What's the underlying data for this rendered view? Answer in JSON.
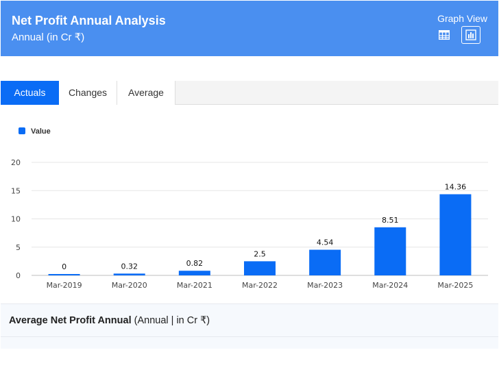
{
  "header": {
    "title": "Net Profit Annual Analysis",
    "subtitle": "Annual (in Cr ₹)",
    "view_label": "Graph View",
    "icons": [
      "table-icon",
      "bar-chart-icon"
    ]
  },
  "tabs": [
    {
      "label": "Actuals",
      "active": true
    },
    {
      "label": "Changes",
      "active": false
    },
    {
      "label": "Average",
      "active": false
    }
  ],
  "legend": {
    "label": "Value",
    "color": "#0a6cf5"
  },
  "chart_data": {
    "type": "bar",
    "categories": [
      "Mar-2019",
      "Mar-2020",
      "Mar-2021",
      "Mar-2022",
      "Mar-2023",
      "Mar-2024",
      "Mar-2025"
    ],
    "series": [
      {
        "name": "Value",
        "values": [
          0,
          0.32,
          0.82,
          2.5,
          4.54,
          8.51,
          14.36
        ]
      }
    ],
    "data_labels": [
      "0",
      "0.32",
      "0.82",
      "2.5",
      "4.54",
      "8.51",
      "14.36"
    ],
    "ylim": [
      0,
      20
    ],
    "yticks": [
      0,
      5,
      10,
      15,
      20
    ],
    "grid": true,
    "legend_position": "top-left",
    "bar_color": "#0a6cf5"
  },
  "footer": {
    "title_bold": "Average Net Profit Annual",
    "title_rest": " (Annual | in Cr ₹)"
  }
}
